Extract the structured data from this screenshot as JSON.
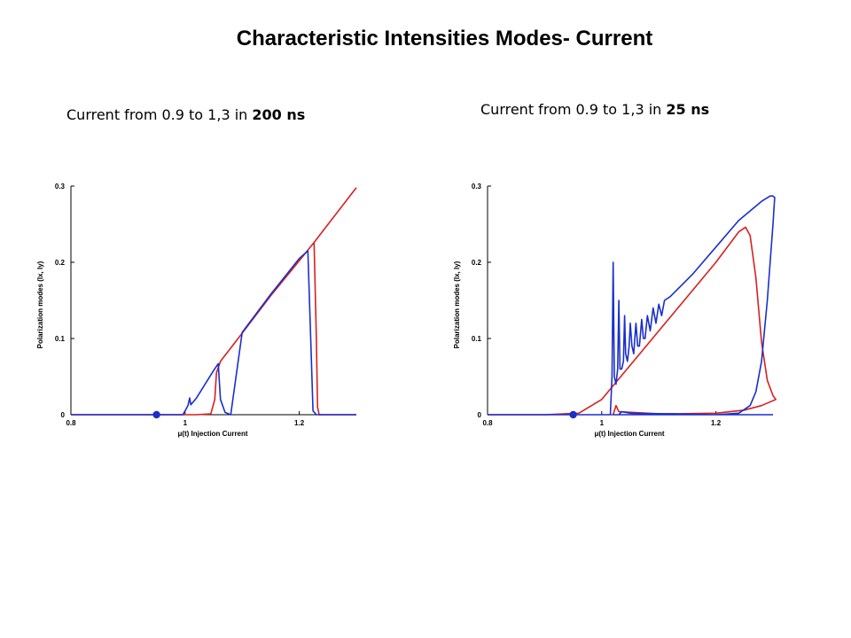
{
  "page_title": "Characteristic  Intensities Modes- Current",
  "captions": {
    "left": {
      "text": "Current from 0.9 to 1,3 in ",
      "bold": "200 ns"
    },
    "right": {
      "text": "Current from 0.9 to 1,3 in ",
      "bold": "25 ns"
    }
  },
  "colors": {
    "red": "#d62020",
    "blue": "#1a2fcc"
  },
  "chart_data": [
    {
      "type": "line",
      "title": "",
      "xlabel": "μ(t) Injection Current",
      "ylabel": "Polarization modes (Ix, Iy)",
      "xlim": [
        0.8,
        1.3
      ],
      "ylim": [
        0,
        0.3
      ],
      "xticks": [
        "0.8",
        "1",
        "1.2"
      ],
      "yticks": [
        "0",
        "0.1",
        "0.2",
        "0.3"
      ],
      "marker": {
        "x": 0.95,
        "y": 0
      },
      "series": [
        {
          "color": "red",
          "points": [
            [
              0.8,
              0
            ],
            [
              1.02,
              0
            ],
            [
              1.045,
              0.001
            ],
            [
              1.052,
              0.02
            ],
            [
              1.055,
              0.055
            ],
            [
              1.062,
              0.07
            ],
            [
              1.1,
              0.107
            ],
            [
              1.15,
              0.156
            ],
            [
              1.2,
              0.202
            ],
            [
              1.226,
              0.226
            ],
            [
              1.23,
              0.1
            ],
            [
              1.232,
              0.01
            ],
            [
              1.235,
              0.0
            ],
            [
              1.245,
              0
            ],
            [
              1.3,
              0
            ]
          ]
        },
        {
          "color": "red",
          "points": [
            [
              1.226,
              0.226
            ],
            [
              1.3,
              0.298
            ]
          ]
        },
        {
          "color": "blue",
          "points": [
            [
              0.8,
              0
            ],
            [
              0.996,
              0
            ],
            [
              1.0,
              0.005
            ],
            [
              1.005,
              0.012
            ],
            [
              1.008,
              0.022
            ],
            [
              1.01,
              0.013
            ],
            [
              1.02,
              0.022
            ],
            [
              1.05,
              0.058
            ],
            [
              1.058,
              0.067
            ],
            [
              1.062,
              0.02
            ],
            [
              1.07,
              0.003
            ],
            [
              1.08,
              0
            ],
            [
              1.1,
              0.108
            ],
            [
              1.15,
              0.158
            ],
            [
              1.2,
              0.205
            ],
            [
              1.215,
              0.215
            ],
            [
              1.22,
              0.1
            ],
            [
              1.224,
              0.005
            ],
            [
              1.23,
              0
            ],
            [
              1.3,
              0
            ]
          ]
        }
      ]
    },
    {
      "type": "line",
      "title": "",
      "xlabel": "μ(t) Injection Current",
      "ylabel": "Polarization modes (Ix, Iy)",
      "xlim": [
        0.8,
        1.3
      ],
      "ylim": [
        0,
        0.3
      ],
      "xticks": [
        "0.8",
        "1",
        "1.2"
      ],
      "yticks": [
        "0",
        "0.1",
        "0.2",
        "0.3"
      ],
      "marker": {
        "x": 0.95,
        "y": 0
      },
      "series": [
        {
          "color": "red",
          "points": [
            [
              0.8,
              0
            ],
            [
              0.9,
              0
            ],
            [
              0.96,
              0.002
            ],
            [
              1.0,
              0.02
            ],
            [
              1.02,
              0.038
            ],
            [
              1.05,
              0.065
            ],
            [
              1.1,
              0.11
            ],
            [
              1.15,
              0.155
            ],
            [
              1.2,
              0.2
            ],
            [
              1.24,
              0.24
            ],
            [
              1.252,
              0.246
            ],
            [
              1.26,
              0.235
            ],
            [
              1.27,
              0.18
            ],
            [
              1.28,
              0.095
            ],
            [
              1.29,
              0.045
            ],
            [
              1.3,
              0.025
            ],
            [
              1.305,
              0.02
            ],
            [
              1.28,
              0.012
            ],
            [
              1.25,
              0.006
            ],
            [
              1.2,
              0.002
            ],
            [
              1.1,
              0.001
            ],
            [
              1.03,
              0.004
            ],
            [
              1.025,
              0.012
            ],
            [
              1.022,
              0.005
            ],
            [
              1.02,
              0.0
            ]
          ]
        },
        {
          "color": "blue",
          "points": [
            [
              0.8,
              0
            ],
            [
              1.015,
              0
            ],
            [
              1.018,
              0.05
            ],
            [
              1.02,
              0.2
            ],
            [
              1.022,
              0.05
            ],
            [
              1.025,
              0.04
            ],
            [
              1.028,
              0.06
            ],
            [
              1.03,
              0.15
            ],
            [
              1.032,
              0.06
            ],
            [
              1.035,
              0.06
            ],
            [
              1.038,
              0.07
            ],
            [
              1.04,
              0.13
            ],
            [
              1.042,
              0.08
            ],
            [
              1.045,
              0.07
            ],
            [
              1.048,
              0.09
            ],
            [
              1.05,
              0.12
            ],
            [
              1.053,
              0.09
            ],
            [
              1.056,
              0.08
            ],
            [
              1.06,
              0.12
            ],
            [
              1.063,
              0.09
            ],
            [
              1.066,
              0.09
            ],
            [
              1.07,
              0.125
            ],
            [
              1.073,
              0.1
            ],
            [
              1.076,
              0.1
            ],
            [
              1.08,
              0.13
            ],
            [
              1.085,
              0.11
            ],
            [
              1.09,
              0.14
            ],
            [
              1.095,
              0.12
            ],
            [
              1.1,
              0.145
            ],
            [
              1.105,
              0.13
            ],
            [
              1.11,
              0.15
            ],
            [
              1.12,
              0.155
            ],
            [
              1.14,
              0.17
            ],
            [
              1.16,
              0.185
            ],
            [
              1.2,
              0.22
            ],
            [
              1.24,
              0.255
            ],
            [
              1.28,
              0.28
            ],
            [
              1.295,
              0.287
            ],
            [
              1.3,
              0.287
            ],
            [
              1.303,
              0.285
            ],
            [
              1.3,
              0.25
            ],
            [
              1.29,
              0.15
            ],
            [
              1.28,
              0.07
            ],
            [
              1.27,
              0.03
            ],
            [
              1.26,
              0.012
            ],
            [
              1.24,
              0.002
            ],
            [
              1.2,
              0
            ],
            [
              1.05,
              0.002
            ],
            [
              1.035,
              0.004
            ],
            [
              1.03,
              0.0
            ],
            [
              1.02,
              0
            ],
            [
              1.3,
              0
            ]
          ]
        }
      ]
    }
  ]
}
